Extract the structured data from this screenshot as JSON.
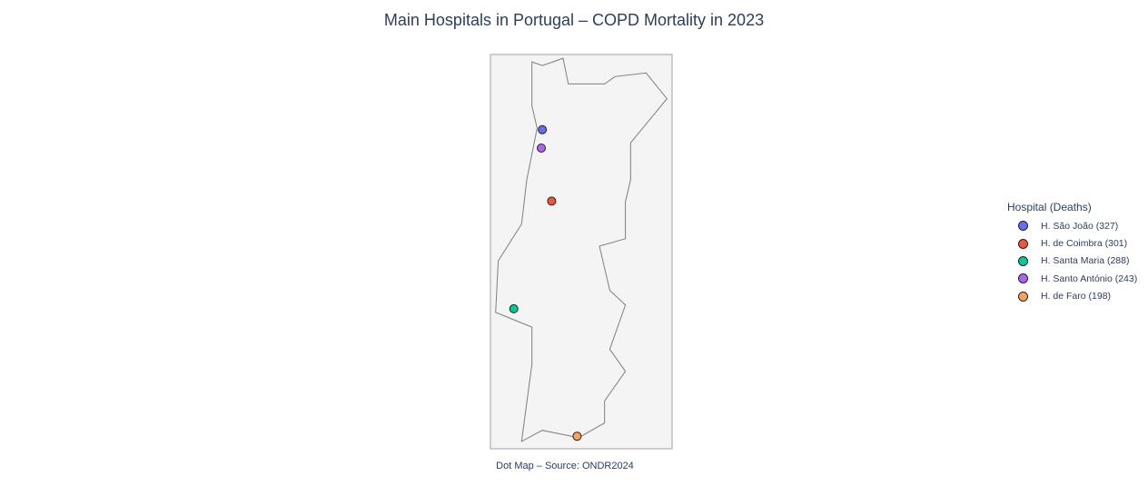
{
  "title": "Main Hospitals in Portugal – COPD Mortality in 2023",
  "caption": "Dot Map – Source: ONDR2024",
  "legend": {
    "title": "Hospital (Deaths)"
  },
  "map": {
    "region": "Portugal",
    "land_color": "#f4f4f4",
    "border_color": "#7f7f7f",
    "lon_range": [
      -9.6,
      -6.1
    ],
    "lat_range": [
      36.85,
      42.2
    ],
    "outline": [
      [
        -8.8,
        42.1
      ],
      [
        -8.6,
        42.05
      ],
      [
        -8.2,
        42.15
      ],
      [
        -8.1,
        41.8
      ],
      [
        -7.4,
        41.8
      ],
      [
        -7.2,
        41.9
      ],
      [
        -6.6,
        41.95
      ],
      [
        -6.2,
        41.6
      ],
      [
        -6.9,
        41.0
      ],
      [
        -6.9,
        40.5
      ],
      [
        -7.0,
        40.2
      ],
      [
        -7.0,
        39.7
      ],
      [
        -7.5,
        39.6
      ],
      [
        -7.3,
        39.0
      ],
      [
        -7.0,
        38.8
      ],
      [
        -7.3,
        38.2
      ],
      [
        -7.0,
        37.9
      ],
      [
        -7.4,
        37.5
      ],
      [
        -7.4,
        37.2
      ],
      [
        -7.9,
        37.0
      ],
      [
        -8.6,
        37.1
      ],
      [
        -9.0,
        36.95
      ],
      [
        -8.8,
        38.0
      ],
      [
        -8.8,
        38.5
      ],
      [
        -9.5,
        38.7
      ],
      [
        -9.45,
        39.4
      ],
      [
        -9.0,
        39.9
      ],
      [
        -8.9,
        40.5
      ],
      [
        -8.7,
        41.2
      ],
      [
        -8.8,
        41.5
      ],
      [
        -8.8,
        42.1
      ]
    ]
  },
  "chart_data": {
    "type": "scatter",
    "xlabel": "",
    "ylabel": "",
    "legend_position": "right",
    "series": [
      {
        "name": "H. São João (327)",
        "hospital": "H. São João",
        "deaths": 327,
        "lon": -8.6,
        "lat": 41.18,
        "color": "#636efa"
      },
      {
        "name": "H. de Coimbra (301)",
        "hospital": "H. de Coimbra",
        "deaths": 301,
        "lon": -8.42,
        "lat": 40.21,
        "color": "#ef553b"
      },
      {
        "name": "H. Santa Maria (288)",
        "hospital": "H. Santa Maria",
        "deaths": 288,
        "lon": -9.15,
        "lat": 38.75,
        "color": "#00cc96"
      },
      {
        "name": "H. Santo António (243)",
        "hospital": "H. Santo António",
        "deaths": 243,
        "lon": -8.62,
        "lat": 40.93,
        "color": "#ab63fa"
      },
      {
        "name": "H. de Faro (198)",
        "hospital": "H. de Faro",
        "deaths": 198,
        "lon": -7.93,
        "lat": 37.02,
        "color": "#ffa15a"
      }
    ]
  }
}
